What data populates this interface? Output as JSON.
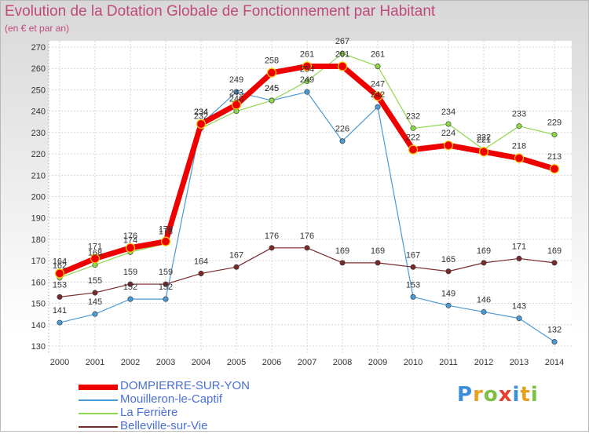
{
  "title": "Evolution de la Dotation Globale de Fonctionnement par Habitant",
  "subtitle": "(en € et par an)",
  "logo": "Proxiti",
  "chart_data": {
    "type": "line",
    "x": [
      "2000",
      "2001",
      "2002",
      "2003",
      "2004",
      "2005",
      "2006",
      "2007",
      "2008",
      "2009",
      "2010",
      "2011",
      "2012",
      "2013",
      "2014"
    ],
    "ylim": [
      130,
      270
    ],
    "yticks": [
      130,
      140,
      150,
      160,
      170,
      180,
      190,
      200,
      210,
      220,
      230,
      240,
      250,
      260,
      270
    ],
    "grid": true,
    "legend_position": "bottom-left",
    "series": [
      {
        "name": "DOMPIERRE-SUR-YON",
        "color": "#ee0000",
        "values": [
          164,
          171,
          176,
          179,
          234,
          243,
          258,
          261,
          261,
          247,
          222,
          224,
          221,
          218,
          213
        ]
      },
      {
        "name": "Mouilleron-le-Captif",
        "color": "#4a9ad6",
        "values": [
          141,
          145,
          152,
          152,
          234,
          249,
          245,
          249,
          226,
          242,
          153,
          149,
          146,
          143,
          132
        ]
      },
      {
        "name": "La Ferrière",
        "color": "#8ed64a",
        "values": [
          162,
          168,
          174,
          178,
          232,
          240,
          245,
          254,
          267,
          261,
          232,
          234,
          222,
          233,
          229
        ]
      },
      {
        "name": "Belleville-sur-Vie",
        "color": "#7a2a2a",
        "values": [
          153,
          155,
          159,
          159,
          164,
          167,
          176,
          176,
          169,
          169,
          167,
          165,
          169,
          171,
          169
        ]
      }
    ]
  }
}
